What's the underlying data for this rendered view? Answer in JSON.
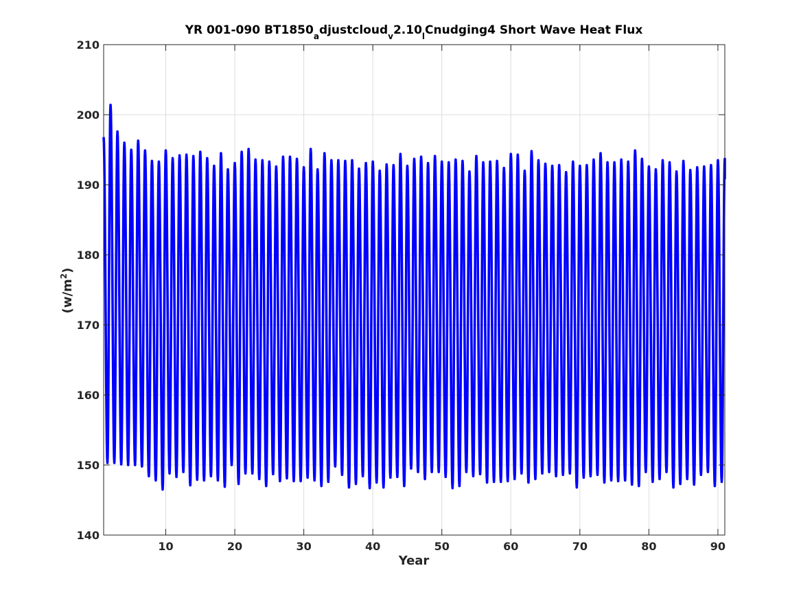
{
  "chart_data": {
    "type": "line",
    "title_parts": [
      {
        "text": "YR 001-090 BT1850",
        "sub": false
      },
      {
        "text": "a",
        "sub": true
      },
      {
        "text": "djustcloud",
        "sub": false
      },
      {
        "text": "v",
        "sub": true
      },
      {
        "text": "2.10",
        "sub": false
      },
      {
        "text": "l",
        "sub": true
      },
      {
        "text": "Cnudging4 Short Wave Heat Flux",
        "sub": false
      }
    ],
    "xlabel": "Year",
    "ylabel_parts": [
      {
        "text": "(w/m",
        "sup": false
      },
      {
        "text": "2",
        "sup": true
      },
      {
        "text": ")",
        "sup": false
      }
    ],
    "xlim": [
      1,
      91
    ],
    "ylim": [
      140,
      210
    ],
    "xticks": [
      10,
      20,
      30,
      40,
      50,
      60,
      70,
      80,
      90
    ],
    "yticks": [
      140,
      150,
      160,
      170,
      180,
      190,
      200,
      210
    ],
    "grid": true,
    "line_color": "#0000ff",
    "series": [
      {
        "start_year": 1,
        "start_value": 196.8,
        "end_year": 91,
        "end_value": 190.8,
        "peaks": [
          201.4,
          197.6,
          196.0,
          195.0,
          196.3,
          194.9,
          193.4,
          193.3,
          194.9,
          193.8,
          194.2,
          194.3,
          194.1,
          194.7,
          193.8,
          192.7,
          194.5,
          192.2,
          193.1,
          194.7,
          195.1,
          193.6,
          193.5,
          193.3,
          192.6,
          194.0,
          194.0,
          193.7,
          192.5,
          195.1,
          192.2,
          194.5,
          193.5,
          193.5,
          193.4,
          193.5,
          192.3,
          193.1,
          193.3,
          192.0,
          192.9,
          192.8,
          194.4,
          192.7,
          193.7,
          194.0,
          193.1,
          194.1,
          193.3,
          193.2,
          193.6,
          193.4,
          191.9,
          194.1,
          193.2,
          193.3,
          193.4,
          192.4,
          194.4,
          194.3,
          192.0,
          194.8,
          193.5,
          193.0,
          192.7,
          192.8,
          191.8,
          193.3,
          192.7,
          192.8,
          193.6,
          194.5,
          193.2,
          193.2,
          193.6,
          193.3,
          194.9,
          193.7,
          192.6,
          192.2,
          193.5,
          193.2,
          191.9,
          193.4,
          192.1,
          192.5,
          192.6,
          192.8,
          193.5,
          193.7
        ],
        "troughs": [
          150.3,
          150.3,
          150.1,
          150.0,
          150.0,
          149.8,
          148.4,
          147.8,
          146.5,
          148.8,
          148.3,
          149.0,
          147.1,
          147.9,
          147.8,
          148.4,
          147.8,
          146.9,
          150.0,
          147.3,
          148.8,
          148.8,
          148.0,
          147.0,
          148.7,
          147.7,
          148.1,
          147.7,
          147.7,
          148.2,
          147.8,
          147.0,
          147.6,
          149.8,
          148.6,
          146.8,
          147.3,
          148.4,
          146.7,
          147.5,
          146.8,
          148.2,
          148.3,
          147.0,
          149.5,
          149.0,
          148.0,
          149.0,
          149.0,
          148.3,
          146.7,
          147.0,
          149.0,
          148.4,
          148.7,
          147.5,
          147.6,
          147.6,
          147.7,
          148.0,
          148.8,
          147.5,
          148.0,
          148.8,
          149.0,
          148.4,
          148.6,
          148.8,
          146.8,
          148.2,
          148.4,
          148.6,
          147.5,
          147.8,
          147.7,
          147.8,
          147.2,
          147.0,
          149.0,
          147.6,
          148.0,
          149.0,
          146.8,
          147.3,
          148.0,
          147.2,
          148.6,
          149.0,
          147.0,
          147.6
        ]
      }
    ]
  }
}
